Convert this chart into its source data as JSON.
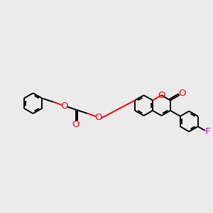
{
  "bg_color": "#ebebeb",
  "bond_color": "#000000",
  "oxygen_color": "#ff0000",
  "fluorine_color": "#cc00cc",
  "bond_width": 1.4,
  "font_size": 9.5,
  "fig_size": [
    3.0,
    3.0
  ],
  "dpi": 100,
  "xlim": [
    0,
    10
  ],
  "ylim": [
    0,
    10
  ]
}
